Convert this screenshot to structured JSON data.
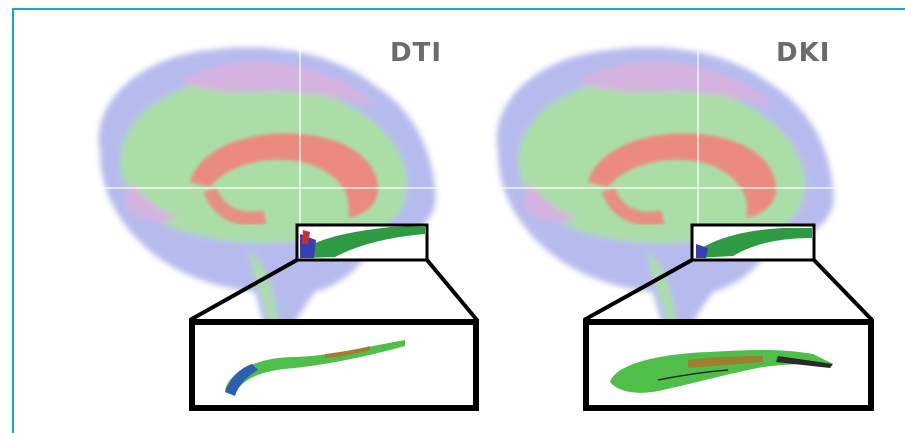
{
  "figure": {
    "panels": [
      {
        "label": "DTI"
      },
      {
        "label": "DKI"
      }
    ],
    "colors": {
      "frame_border": "#1ba6c9",
      "inset_border": "#000000",
      "tract_red": "#f2827c",
      "tract_green": "#8fd48a",
      "tract_blue": "#9fa4e8",
      "label": "#6b6b6b"
    }
  }
}
